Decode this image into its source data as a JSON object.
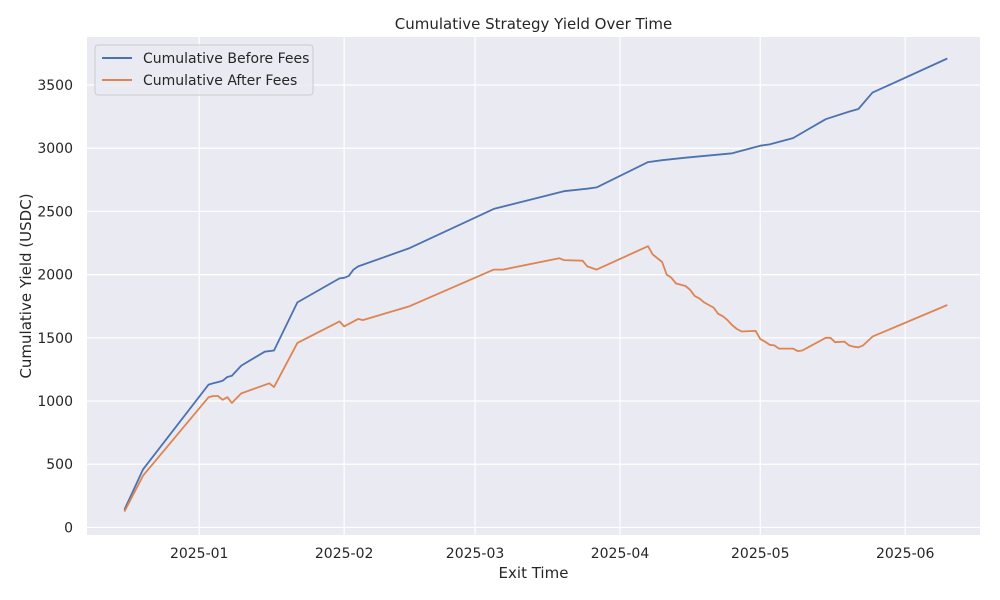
{
  "chart_data": {
    "type": "line",
    "title": "Cumulative Strategy Yield Over Time",
    "xlabel": "Exit Time",
    "ylabel": "Cumulative Yield (USDC)",
    "xlim": [
      "2024-12-08",
      "2025-06-17"
    ],
    "ylim": [
      -60,
      3880
    ],
    "x_ticks": [
      "2025-01-01",
      "2025-02-01",
      "2025-03-01",
      "2025-04-01",
      "2025-05-01",
      "2025-06-01"
    ],
    "x_tick_labels": [
      "2025-01",
      "2025-02",
      "2025-03",
      "2025-04",
      "2025-05",
      "2025-06"
    ],
    "y_ticks": [
      0,
      500,
      1000,
      1500,
      2000,
      2500,
      3000,
      3500
    ],
    "y_tick_labels": [
      "0",
      "500",
      "1000",
      "1500",
      "2000",
      "2500",
      "3000",
      "3500"
    ],
    "grid": true,
    "background": "#eaeaf2",
    "legend_position": "top-left",
    "series": [
      {
        "name": "Cumulative Before Fees",
        "color": "#4c72b0",
        "points": [
          [
            "2024-12-16",
            140
          ],
          [
            "2024-12-20",
            460
          ],
          [
            "2025-01-03",
            1130
          ],
          [
            "2025-01-04",
            1140
          ],
          [
            "2025-01-05",
            1150
          ],
          [
            "2025-01-06",
            1160
          ],
          [
            "2025-01-07",
            1190
          ],
          [
            "2025-01-08",
            1200
          ],
          [
            "2025-01-10",
            1280
          ],
          [
            "2025-01-15",
            1390
          ],
          [
            "2025-01-17",
            1400
          ],
          [
            "2025-01-22",
            1780
          ],
          [
            "2025-01-31",
            1970
          ],
          [
            "2025-02-01",
            1975
          ],
          [
            "2025-02-02",
            1990
          ],
          [
            "2025-02-03",
            2040
          ],
          [
            "2025-02-04",
            2065
          ],
          [
            "2025-02-15",
            2210
          ],
          [
            "2025-03-05",
            2520
          ],
          [
            "2025-03-20",
            2660
          ],
          [
            "2025-03-25",
            2680
          ],
          [
            "2025-03-27",
            2690
          ],
          [
            "2025-04-07",
            2890
          ],
          [
            "2025-04-10",
            2905
          ],
          [
            "2025-04-15",
            2925
          ],
          [
            "2025-04-25",
            2960
          ],
          [
            "2025-05-01",
            3020
          ],
          [
            "2025-05-03",
            3030
          ],
          [
            "2025-05-07",
            3070
          ],
          [
            "2025-05-08",
            3080
          ],
          [
            "2025-05-15",
            3230
          ],
          [
            "2025-05-20",
            3290
          ],
          [
            "2025-05-22",
            3310
          ],
          [
            "2025-05-25",
            3440
          ],
          [
            "2025-06-10",
            3710
          ]
        ]
      },
      {
        "name": "Cumulative After Fees",
        "color": "#dd8452",
        "points": [
          [
            "2024-12-16",
            125
          ],
          [
            "2024-12-20",
            410
          ],
          [
            "2025-01-03",
            1030
          ],
          [
            "2025-01-04",
            1040
          ],
          [
            "2025-01-05",
            1040
          ],
          [
            "2025-01-06",
            1010
          ],
          [
            "2025-01-07",
            1030
          ],
          [
            "2025-01-08",
            985
          ],
          [
            "2025-01-10",
            1060
          ],
          [
            "2025-01-16",
            1140
          ],
          [
            "2025-01-17",
            1110
          ],
          [
            "2025-01-22",
            1460
          ],
          [
            "2025-01-31",
            1630
          ],
          [
            "2025-02-01",
            1590
          ],
          [
            "2025-02-04",
            1650
          ],
          [
            "2025-02-05",
            1640
          ],
          [
            "2025-02-15",
            1750
          ],
          [
            "2025-03-05",
            2040
          ],
          [
            "2025-03-07",
            2040
          ],
          [
            "2025-03-19",
            2130
          ],
          [
            "2025-03-20",
            2115
          ],
          [
            "2025-03-24",
            2110
          ],
          [
            "2025-03-25",
            2065
          ],
          [
            "2025-03-27",
            2040
          ],
          [
            "2025-04-07",
            2225
          ],
          [
            "2025-04-08",
            2160
          ],
          [
            "2025-04-10",
            2100
          ],
          [
            "2025-04-11",
            2000
          ],
          [
            "2025-04-12",
            1975
          ],
          [
            "2025-04-13",
            1930
          ],
          [
            "2025-04-14",
            1920
          ],
          [
            "2025-04-15",
            1910
          ],
          [
            "2025-04-16",
            1880
          ],
          [
            "2025-04-17",
            1830
          ],
          [
            "2025-04-18",
            1810
          ],
          [
            "2025-04-19",
            1780
          ],
          [
            "2025-04-20",
            1760
          ],
          [
            "2025-04-21",
            1740
          ],
          [
            "2025-04-22",
            1690
          ],
          [
            "2025-04-23",
            1670
          ],
          [
            "2025-04-24",
            1640
          ],
          [
            "2025-04-25",
            1600
          ],
          [
            "2025-04-26",
            1570
          ],
          [
            "2025-04-27",
            1550
          ],
          [
            "2025-04-30",
            1555
          ],
          [
            "2025-05-01",
            1490
          ],
          [
            "2025-05-02",
            1470
          ],
          [
            "2025-05-03",
            1445
          ],
          [
            "2025-05-04",
            1440
          ],
          [
            "2025-05-05",
            1415
          ],
          [
            "2025-05-08",
            1415
          ],
          [
            "2025-05-09",
            1395
          ],
          [
            "2025-05-10",
            1400
          ],
          [
            "2025-05-15",
            1500
          ],
          [
            "2025-05-16",
            1500
          ],
          [
            "2025-05-17",
            1465
          ],
          [
            "2025-05-19",
            1470
          ],
          [
            "2025-05-20",
            1440
          ],
          [
            "2025-05-21",
            1430
          ],
          [
            "2025-05-22",
            1425
          ],
          [
            "2025-05-23",
            1440
          ],
          [
            "2025-05-25",
            1510
          ],
          [
            "2025-06-10",
            1760
          ]
        ]
      }
    ]
  }
}
